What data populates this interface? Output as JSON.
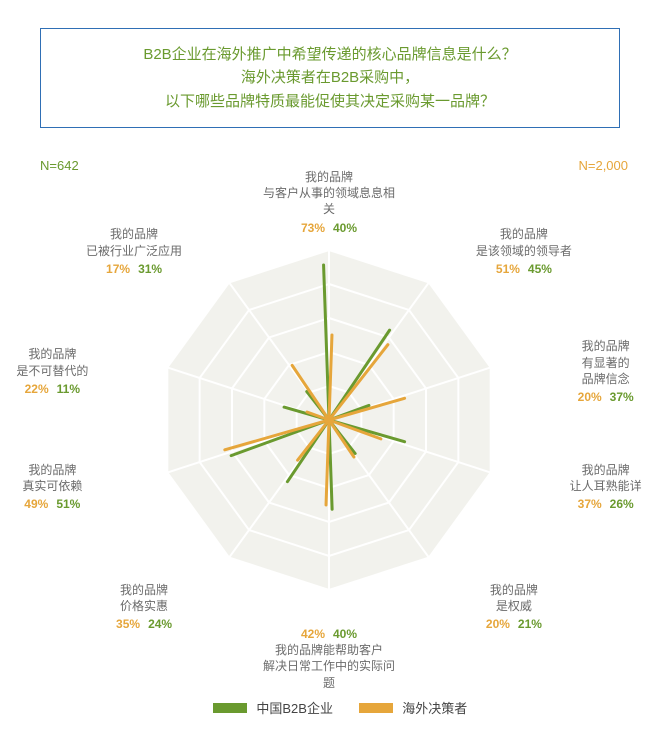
{
  "title": {
    "line1": "B2B企业在海外推广中希望传递的核心品牌信息是什么？",
    "line2": "海外决策者在B2B采购中，",
    "line3": "以下哪些品牌特质最能促使其决定采购某一品牌？",
    "border_color": "#2f6fb5",
    "text_color": "#6a9a2f",
    "fontsize": 15
  },
  "sample": {
    "left": {
      "text": "N=642",
      "color": "#6a9a2f"
    },
    "right": {
      "text": "N=2,000",
      "color": "#e6a63b"
    }
  },
  "chart": {
    "type": "radar",
    "background_color": "#ffffff",
    "grid_fill": "#f2f2ed",
    "grid_stroke": "#ffffff",
    "grid_levels": 5,
    "max_value": 80,
    "series": [
      {
        "name": "中国B2B企业",
        "color": "#6a9a2f",
        "stroke_width": 3
      },
      {
        "name": "海外决策者",
        "color": "#e6a63b",
        "stroke_width": 3
      }
    ],
    "axes": [
      {
        "label_lines": [
          "我的品牌",
          "与客户从事的领域息息相关"
        ],
        "values": [
          73,
          40
        ]
      },
      {
        "label_lines": [
          "我的品牌",
          "是该领域的领导者"
        ],
        "values": [
          51,
          45
        ]
      },
      {
        "label_lines": [
          "我的品牌",
          "有显著的",
          "品牌信念"
        ],
        "values": [
          20,
          37
        ]
      },
      {
        "label_lines": [
          "我的品牌",
          "让人耳熟能详"
        ],
        "values": [
          37,
          26
        ]
      },
      {
        "label_lines": [
          "我的品牌",
          "是权威"
        ],
        "values": [
          20,
          21
        ]
      },
      {
        "label_lines": [
          "我的品牌能帮助客户",
          "解决日常工作中的实际问题"
        ],
        "values": [
          42,
          40
        ]
      },
      {
        "label_lines": [
          "我的品牌",
          "价格实惠"
        ],
        "values": [
          35,
          24
        ]
      },
      {
        "label_lines": [
          "我的品牌",
          "真实可依赖"
        ],
        "values": [
          49,
          51
        ]
      },
      {
        "label_lines": [
          "我的品牌",
          "是不可替代的"
        ],
        "values": [
          22,
          11
        ]
      },
      {
        "label_lines": [
          "我的品牌",
          "已被行业广泛应用"
        ],
        "values": [
          17,
          31
        ]
      }
    ],
    "label_text_color": "#6b6b6b",
    "label_fontsize": 12
  },
  "legend": {
    "items": [
      {
        "swatch": "#6a9a2f",
        "label": "中国B2B企业"
      },
      {
        "swatch": "#e6a63b",
        "label": "海外决策者"
      }
    ],
    "fontsize": 13
  }
}
